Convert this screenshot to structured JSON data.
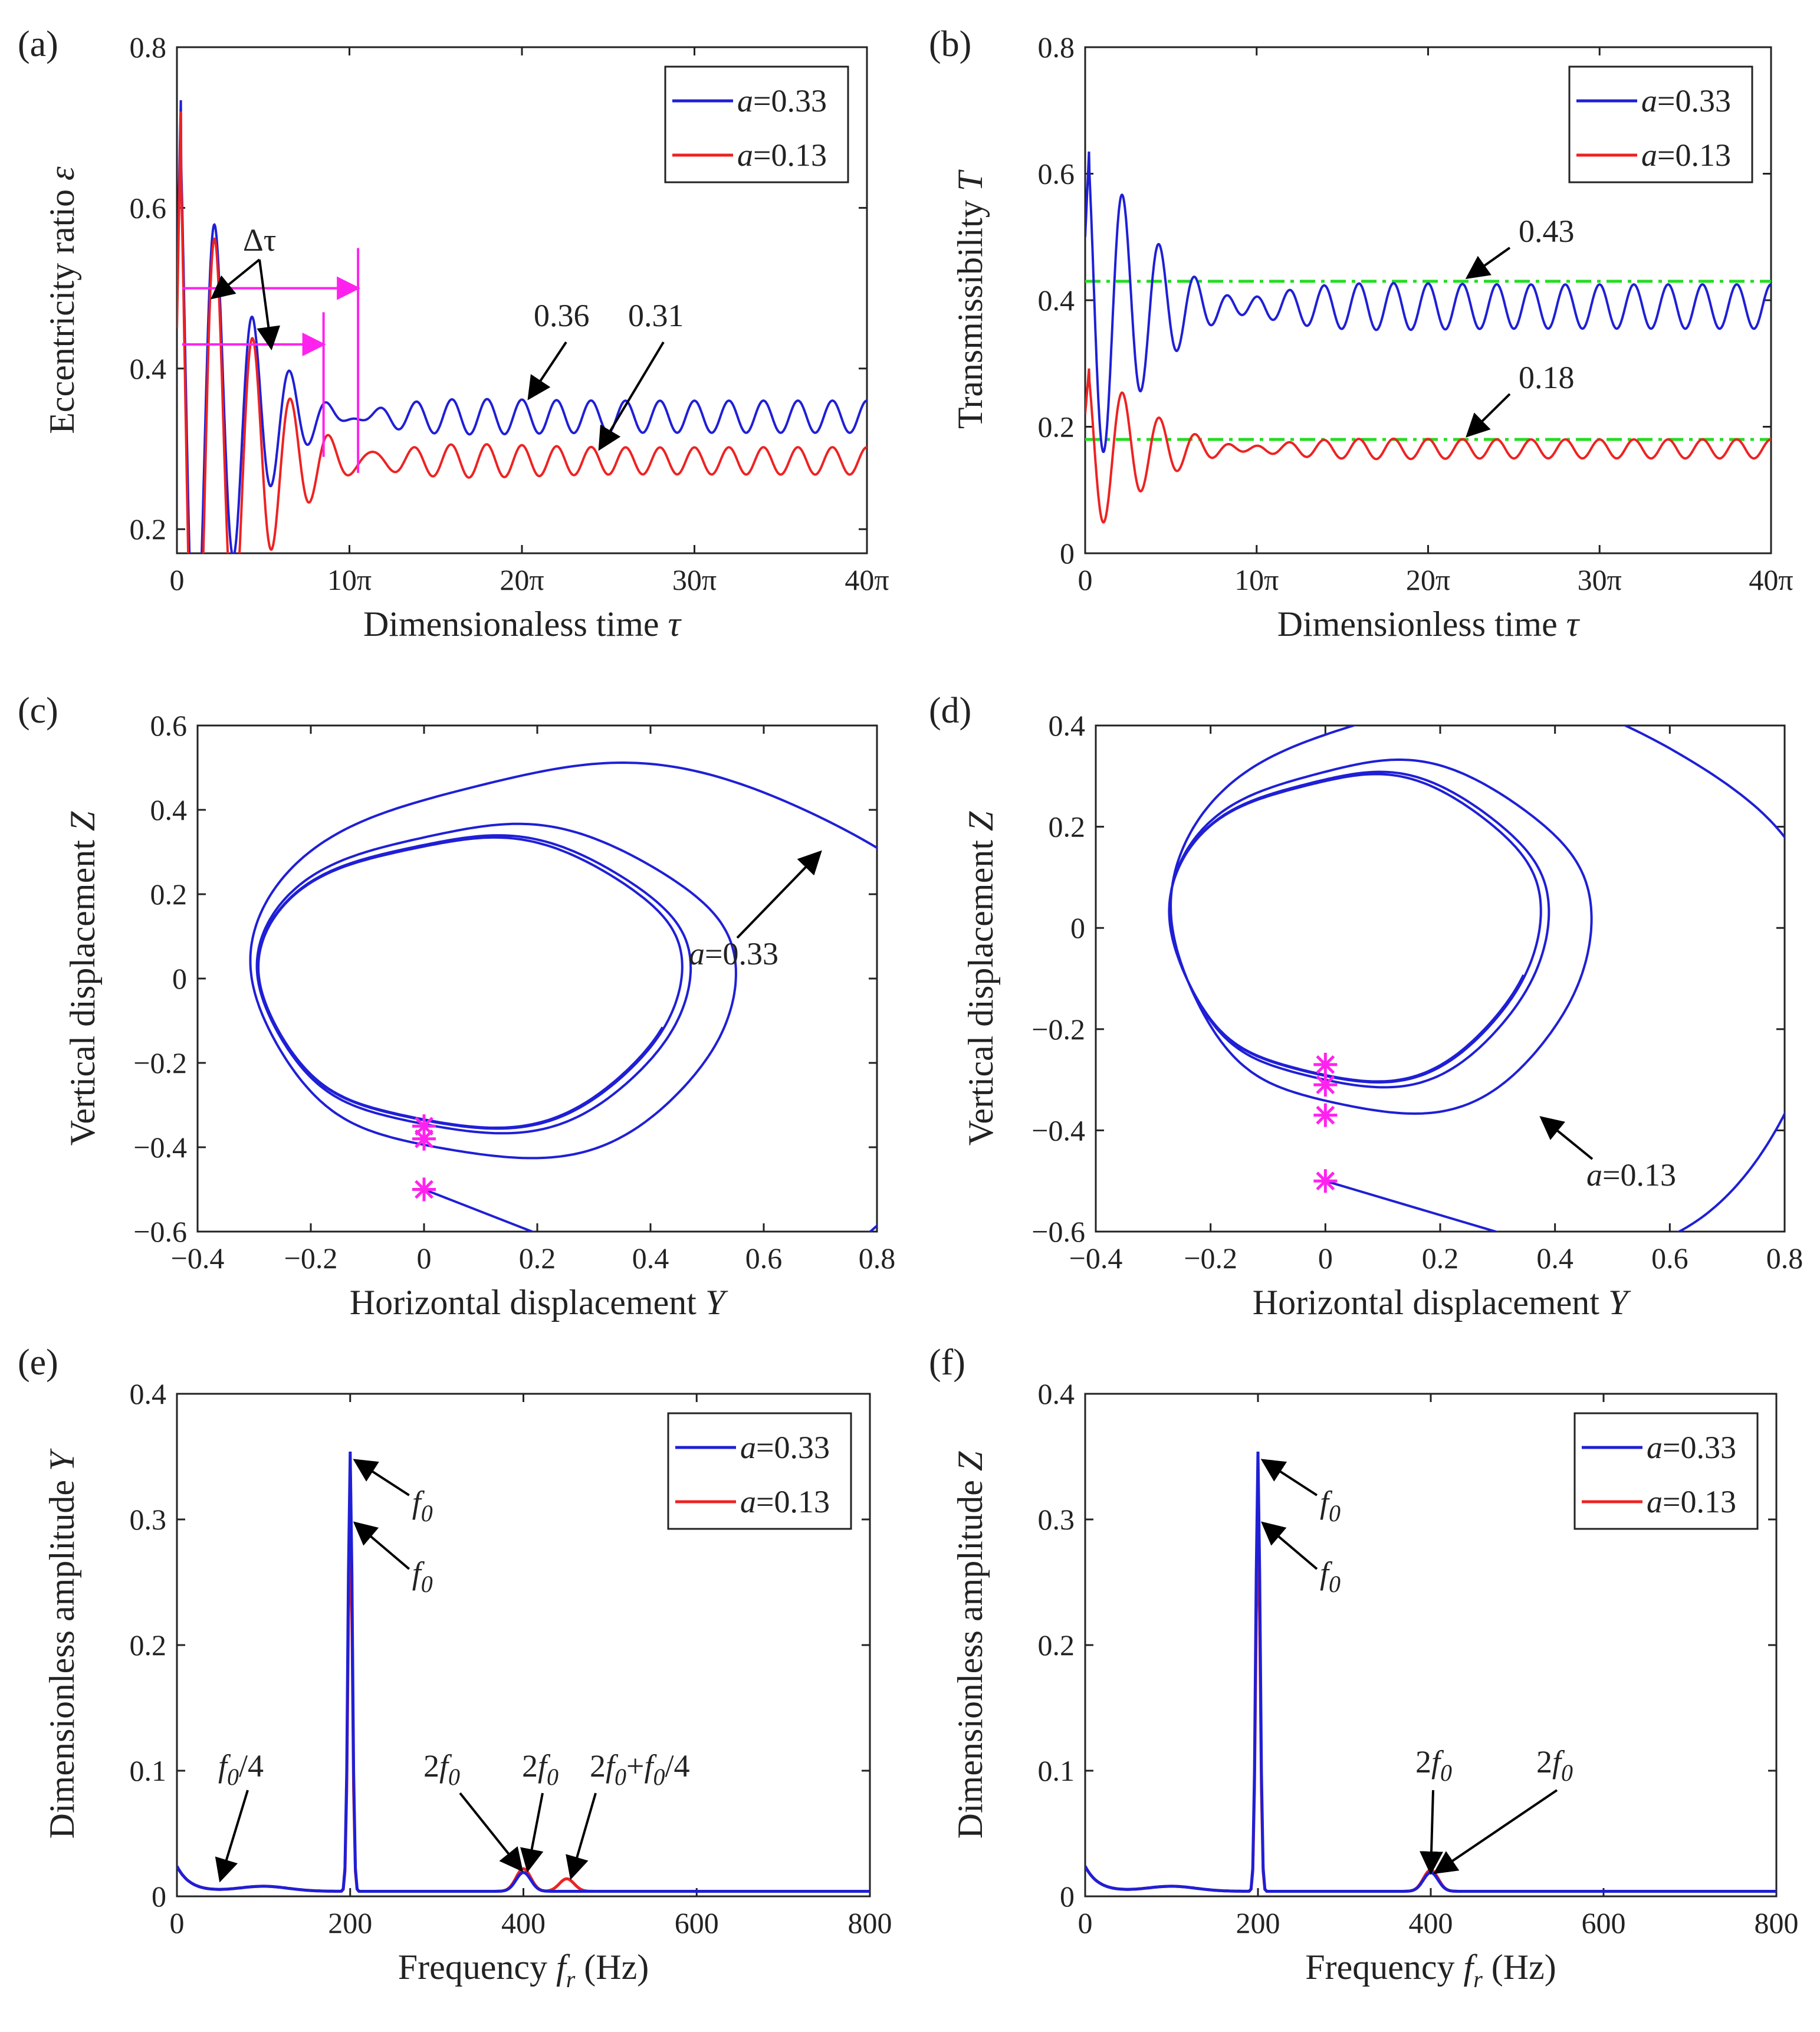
{
  "figure": {
    "panel_labels": [
      "(a)",
      "(b)",
      "(c)",
      "(d)",
      "(e)",
      "(f)"
    ]
  },
  "colors": {
    "series_a033": "#1f1fd6",
    "series_a013": "#ee2222",
    "marker": "#ff22ee",
    "dashed_ref": "#22dd22",
    "annotation": "#ff22ee",
    "arrow": "#000000"
  },
  "chart_data": [
    {
      "id": "a",
      "type": "line",
      "panel_label": "(a)",
      "title": "",
      "xlabel": "Dimensionaless time",
      "xlabel_symbol": "τ",
      "ylabel": "Eccentricity ratio",
      "ylabel_symbol": "ε",
      "xlim_pi": [
        0,
        40
      ],
      "ylim": [
        0.17,
        0.8
      ],
      "xticks": [
        "0",
        "10π",
        "20π",
        "30π",
        "40π"
      ],
      "yticks": [
        "0.2",
        "0.4",
        "0.6",
        "0.8"
      ],
      "legend_position": "top-right",
      "legend": [
        "a=0.33",
        "a=0.13"
      ],
      "series": [
        {
          "name": "a=0.33",
          "color": "#1f1fd6",
          "start": 0.5,
          "peak": 0.76,
          "mean": 0.34,
          "amp": 0.02,
          "period_pi": 2,
          "decay_pi": 4.5
        },
        {
          "name": "a=0.13",
          "color": "#ee2222",
          "start": 0.45,
          "peak": 0.75,
          "mean": 0.285,
          "amp": 0.017,
          "period_pi": 2,
          "decay_pi": 5
        }
      ],
      "annotations": [
        {
          "text": "Δτ",
          "kind": "interval",
          "values": [
            "0 → 10.5π",
            "0 → 8.5π"
          ]
        },
        {
          "text": "0.36",
          "x_pi": 20.4,
          "y": 0.36
        },
        {
          "text": "0.31",
          "x_pi": 24.5,
          "y": 0.3
        }
      ]
    },
    {
      "id": "b",
      "type": "line",
      "panel_label": "(b)",
      "title": "",
      "xlabel": "Dimensionless time",
      "xlabel_symbol": "τ",
      "ylabel": "Transmissibility",
      "ylabel_symbol": "T",
      "xlim_pi": [
        0,
        40
      ],
      "ylim": [
        0,
        0.8
      ],
      "xticks": [
        "0",
        "10π",
        "20π",
        "30π",
        "40π"
      ],
      "yticks": [
        "0",
        "0.2",
        "0.4",
        "0.6",
        "0.8"
      ],
      "legend_position": "top-right",
      "legend": [
        "a=0.33",
        "a=0.13"
      ],
      "series": [
        {
          "name": "a=0.33",
          "color": "#1f1fd6",
          "start": 0.5,
          "peak": 0.65,
          "mean": 0.39,
          "amp": 0.035,
          "period_pi": 2,
          "decay_pi": 5
        },
        {
          "name": "a=0.13",
          "color": "#ee2222",
          "start": 0.22,
          "peak": 0.3,
          "mean": 0.165,
          "amp": 0.015,
          "period_pi": 2,
          "decay_pi": 5
        }
      ],
      "reference_lines": [
        0.43,
        0.18
      ],
      "annotations": [
        {
          "text": "0.43",
          "x_pi": 22.5,
          "y": 0.43
        },
        {
          "text": "0.18",
          "x_pi": 22.5,
          "y": 0.18
        }
      ]
    },
    {
      "id": "c",
      "type": "line",
      "panel_label": "(c)",
      "title": "",
      "xlabel": "Horizontal displacement",
      "xlabel_symbol": "Y",
      "ylabel": "Vertical displacement",
      "ylabel_symbol": "Z",
      "xlim": [
        -0.4,
        0.8
      ],
      "ylim": [
        -0.6,
        0.6
      ],
      "xticks": [
        "−0.4",
        "−0.2",
        "0",
        "0.2",
        "0.4",
        "0.6",
        "0.8"
      ],
      "yticks": [
        "−0.6",
        "−0.4",
        "−0.2",
        "0",
        "0.2",
        "0.4",
        "0.6"
      ],
      "series": [
        {
          "name": "a=0.33",
          "color": "#1f1fd6",
          "orbit_center": [
            0.08,
            -0.01
          ],
          "orbit_radius": [
            0.37,
            0.34
          ],
          "start": [
            0,
            -0.5
          ]
        }
      ],
      "markers": [
        [
          0,
          -0.5
        ],
        [
          0,
          -0.38
        ],
        [
          0,
          -0.35
        ]
      ],
      "annotations": [
        {
          "text": "a=0.33",
          "x": 0.7,
          "y": 0.3
        }
      ]
    },
    {
      "id": "d",
      "type": "line",
      "panel_label": "(d)",
      "title": "",
      "xlabel": "Horizontal displacement",
      "xlabel_symbol": "Y",
      "ylabel": "Vertical displacement",
      "ylabel_symbol": "Z",
      "xlim": [
        -0.4,
        0.8
      ],
      "ylim": [
        -0.6,
        0.4
      ],
      "xticks": [
        "−0.4",
        "−0.2",
        "0",
        "0.2",
        "0.4",
        "0.6",
        "0.8"
      ],
      "yticks": [
        "−0.6",
        "−0.4",
        "−0.2",
        "0",
        "0.2",
        "0.4"
      ],
      "series": [
        {
          "name": "a=0.13",
          "color": "#1f1fd6",
          "orbit_center": [
            0.05,
            0.0
          ],
          "orbit_radius": [
            0.32,
            0.3
          ],
          "start": [
            0,
            -0.5
          ]
        }
      ],
      "markers": [
        [
          0,
          -0.5
        ],
        [
          0,
          -0.37
        ],
        [
          0,
          -0.31
        ],
        [
          0,
          -0.27
        ]
      ],
      "annotations": [
        {
          "text": "a=0.13",
          "x": 0.37,
          "y": -0.37
        }
      ]
    },
    {
      "id": "e",
      "type": "line",
      "panel_label": "(e)",
      "title": "",
      "xlabel": "Frequency",
      "xlabel_symbol": "f",
      "xlabel_subscript": "r",
      "xlabel_unit": "(Hz)",
      "ylabel": "Dimensionless amplitude",
      "ylabel_symbol": "Y",
      "xlim": [
        0,
        800
      ],
      "ylim": [
        0,
        0.4
      ],
      "xticks": [
        "0",
        "200",
        "400",
        "600",
        "800"
      ],
      "yticks": [
        "0",
        "0.1",
        "0.2",
        "0.3",
        "0.4"
      ],
      "legend_position": "top-right",
      "legend": [
        "a=0.33",
        "a=0.13"
      ],
      "series": [
        {
          "name": "a=0.33",
          "color": "#1f1fd6",
          "peaks": [
            {
              "f": 200,
              "amp": 0.35
            },
            {
              "f": 400,
              "amp": 0.015
            }
          ]
        },
        {
          "name": "a=0.13",
          "color": "#ee2222",
          "peaks": [
            {
              "f": 200,
              "amp": 0.3
            },
            {
              "f": 400,
              "amp": 0.018
            },
            {
              "f": 450,
              "amp": 0.01
            }
          ]
        }
      ],
      "annotations": [
        "f0",
        "f0",
        "f0/4",
        "2f0",
        "2f0",
        "2f0+f0/4"
      ]
    },
    {
      "id": "f",
      "type": "line",
      "panel_label": "(f)",
      "title": "",
      "xlabel": "Frequency",
      "xlabel_symbol": "f",
      "xlabel_subscript": "r",
      "xlabel_unit": "(Hz)",
      "ylabel": "Dimensionless amplitude",
      "ylabel_symbol": "Z",
      "xlim": [
        0,
        800
      ],
      "ylim": [
        0,
        0.4
      ],
      "xticks": [
        "0",
        "200",
        "400",
        "600",
        "800"
      ],
      "yticks": [
        "0",
        "0.1",
        "0.2",
        "0.3",
        "0.4"
      ],
      "legend_position": "top-right",
      "legend": [
        "a=0.33",
        "a=0.13"
      ],
      "series": [
        {
          "name": "a=0.33",
          "color": "#1f1fd6",
          "peaks": [
            {
              "f": 200,
              "amp": 0.35
            },
            {
              "f": 400,
              "amp": 0.015
            }
          ]
        },
        {
          "name": "a=0.13",
          "color": "#ee2222",
          "peaks": [
            {
              "f": 200,
              "amp": 0.3
            },
            {
              "f": 400,
              "amp": 0.017
            }
          ]
        }
      ],
      "annotations": [
        "f0",
        "f0",
        "2f0",
        "2f0"
      ]
    }
  ]
}
